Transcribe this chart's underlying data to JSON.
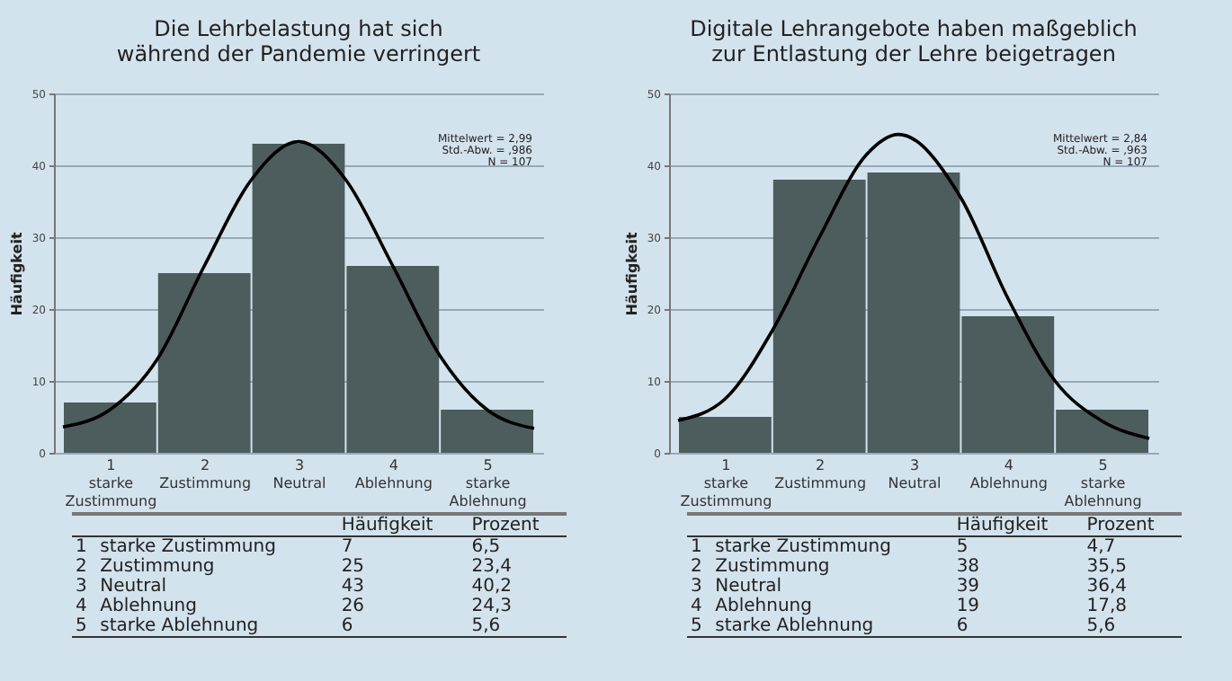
{
  "chart_data": [
    {
      "type": "bar",
      "title": "Die Lehrbelastung hat sich\nwährend der Pandemie verringert",
      "ylabel": "Häufigkeit",
      "x": [
        1,
        2,
        3,
        4,
        5
      ],
      "series": [
        {
          "color": "#4d5c5c",
          "values": [
            7,
            25,
            43,
            26,
            6
          ]
        },
        {
          "type": "line",
          "color": "#000000",
          "x": [
            0.5,
            1,
            1.5,
            2,
            2.5,
            3,
            3.5,
            4,
            4.5,
            5,
            5.5
          ],
          "values": [
            3.6,
            6,
            13,
            26,
            38,
            43.3,
            38,
            26,
            13.5,
            6,
            3.4
          ]
        }
      ],
      "xlim": [
        0.5,
        5.5
      ],
      "xticks": [
        {
          "value": 1,
          "label": "1\nstarke\nZustimmung"
        },
        {
          "value": 2,
          "label": "2\nZustimmung"
        },
        {
          "value": 3,
          "label": "3\nNeutral"
        },
        {
          "value": 4,
          "label": "4\nAblehnung"
        },
        {
          "value": 5,
          "label": "5\nstarke\nAblehnung"
        }
      ],
      "ylim": [
        0,
        50
      ],
      "yticks": [
        0,
        10,
        20,
        30,
        40,
        50
      ],
      "grid": "y",
      "annotations": [
        "Mittelwert = 2,99\nStd.-Abw. = ,986\nN = 107",
        "Häufigkeit",
        "Prozent",
        "1",
        "starke Zustimmung",
        "7",
        "6,5",
        "2",
        "Zustimmung",
        "25",
        "23,4",
        "3",
        "Neutral",
        "43",
        "40,2",
        "4",
        "Ablehnung",
        "26",
        "24,3",
        "5",
        "starke Ablehnung",
        "6",
        "5,6"
      ]
    },
    {
      "type": "bar",
      "title": "Digitale Lehrangebote haben maßgeblich\nzur Entlastung der Lehre beigetragen",
      "ylabel": "Häufigkeit",
      "x": [
        1,
        2,
        3,
        4,
        5
      ],
      "series": [
        {
          "color": "#4d5c5c",
          "values": [
            5,
            38,
            39,
            19,
            6
          ]
        },
        {
          "type": "line",
          "color": "#000000",
          "x": [
            0.5,
            1,
            1.5,
            2,
            2.5,
            2.84,
            3.5,
            4,
            4.5,
            5,
            5.5
          ],
          "values": [
            4.5,
            7.5,
            17,
            30,
            41.5,
            44.3,
            35.5,
            21.5,
            10,
            4.4,
            2
          ]
        }
      ],
      "xlim": [
        0.5,
        5.5
      ],
      "xticks": [
        {
          "value": 1,
          "label": "1\nstarke\nZustimmung"
        },
        {
          "value": 2,
          "label": "2\nZustimmung"
        },
        {
          "value": 3,
          "label": "3\nNeutral"
        },
        {
          "value": 4,
          "label": "4\nAblehnung"
        },
        {
          "value": 5,
          "label": "5\nstarke\nAblehnung"
        }
      ],
      "ylim": [
        0,
        50
      ],
      "yticks": [
        0,
        10,
        20,
        30,
        40,
        50
      ],
      "grid": "y",
      "annotations": [
        "Mittelwert = 2,84\nStd.-Abw. = ,963\nN = 107",
        "Häufigkeit",
        "Prozent",
        "1",
        "starke Zustimmung",
        "5",
        "4,7",
        "2",
        "Zustimmung",
        "38",
        "35,5",
        "3",
        "Neutral",
        "39",
        "36,4",
        "4",
        "Ablehnung",
        "19",
        "17,8",
        "5",
        "starke Ablehnung",
        "6",
        "5,6"
      ]
    }
  ]
}
